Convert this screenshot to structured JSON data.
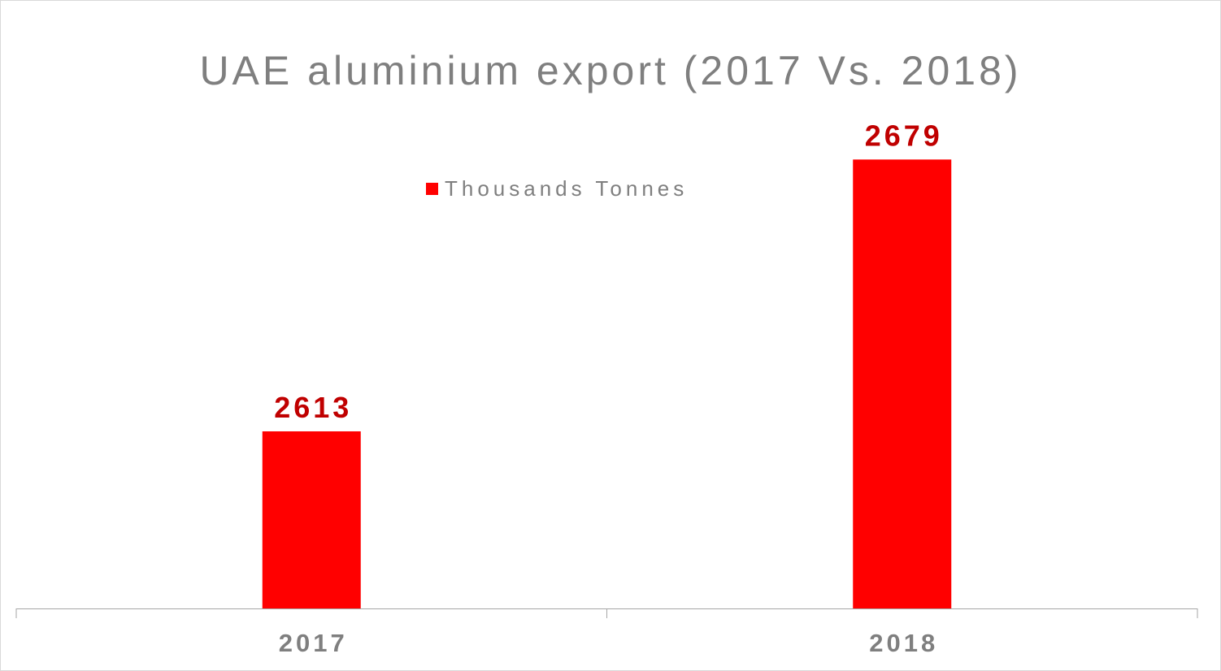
{
  "chart_data": {
    "type": "bar",
    "title": "UAE aluminium export (2017 Vs. 2018)",
    "categories": [
      "2017",
      "2018"
    ],
    "series": [
      {
        "name": "Thousands Tonnes",
        "values": [
          2613,
          2679
        ]
      }
    ],
    "data_labels": [
      "2613",
      "2679"
    ],
    "xlabel": "",
    "ylabel": "",
    "ylim": [
      2570,
      2684
    ],
    "grid": false,
    "legend_position": "top-center",
    "colors": {
      "bar": "#ff0000",
      "data_label": "#c00000",
      "text": "#7f7f7f",
      "axis": "#a6a6a6"
    }
  }
}
